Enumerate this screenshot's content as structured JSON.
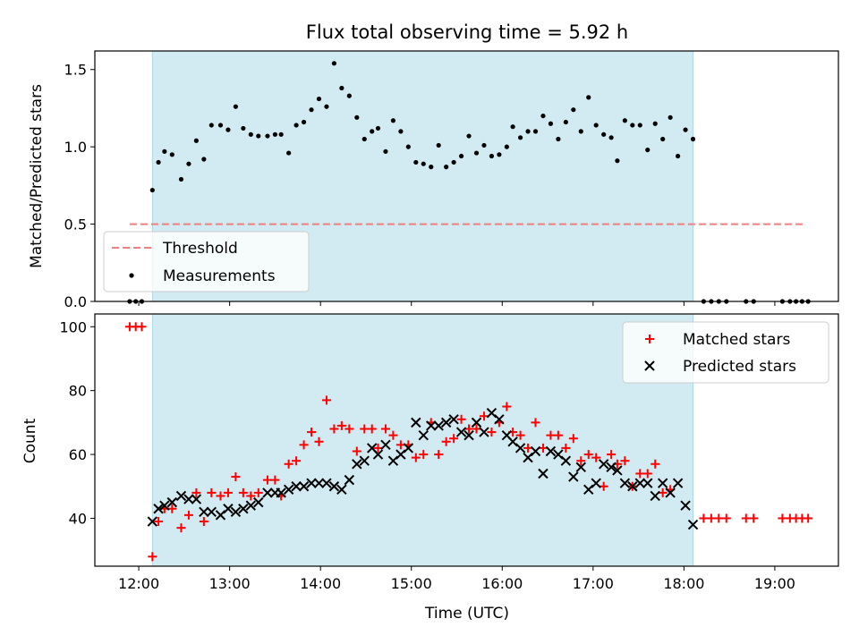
{
  "title": "Flux total observing time = 5.92 h",
  "colors": {
    "shade": "#add8e6",
    "threshold": "#f08080",
    "measurement": "#000000",
    "matched": "#ff0000",
    "predicted": "#000000"
  },
  "chart_data": [
    {
      "type": "scatter",
      "ylabel": "Matched/Predicted stars",
      "xlim": [
        "11:31",
        "19:42"
      ],
      "ylim": [
        0,
        1.62
      ],
      "yticks": [
        0.0,
        0.5,
        1.0,
        1.5
      ],
      "ytick_labels": [
        "0.0",
        "0.5",
        "1.0",
        "1.5"
      ],
      "shaded_span": [
        "12:09",
        "18:06"
      ],
      "threshold": {
        "label": "Threshold",
        "value": 0.5,
        "x_range": [
          "11:54",
          "19:20"
        ]
      },
      "legend": {
        "placement": "lower-left",
        "entries": [
          "Threshold",
          "Measurements"
        ]
      },
      "series": [
        {
          "name": "Measurements",
          "points": [
            [
              "11:54",
              0
            ],
            [
              "11:58",
              0
            ],
            [
              "12:02",
              0
            ],
            [
              "12:09",
              0.72
            ],
            [
              "12:13",
              0.9
            ],
            [
              "12:17",
              0.97
            ],
            [
              "12:22",
              0.95
            ],
            [
              "12:28",
              0.79
            ],
            [
              "12:33",
              0.89
            ],
            [
              "12:38",
              1.04
            ],
            [
              "12:43",
              0.92
            ],
            [
              "12:48",
              1.14
            ],
            [
              "12:54",
              1.14
            ],
            [
              "12:59",
              1.11
            ],
            [
              "13:04",
              1.26
            ],
            [
              "13:09",
              1.12
            ],
            [
              "13:14",
              1.08
            ],
            [
              "13:19",
              1.07
            ],
            [
              "13:25",
              1.07
            ],
            [
              "13:30",
              1.08
            ],
            [
              "13:34",
              1.08
            ],
            [
              "13:39",
              0.96
            ],
            [
              "13:44",
              1.14
            ],
            [
              "13:49",
              1.16
            ],
            [
              "13:54",
              1.24
            ],
            [
              "13:59",
              1.31
            ],
            [
              "14:04",
              1.26
            ],
            [
              "14:09",
              1.54
            ],
            [
              "14:14",
              1.38
            ],
            [
              "14:19",
              1.33
            ],
            [
              "14:24",
              1.19
            ],
            [
              "14:29",
              1.05
            ],
            [
              "14:34",
              1.1
            ],
            [
              "14:38",
              1.12
            ],
            [
              "14:43",
              0.97
            ],
            [
              "14:48",
              1.17
            ],
            [
              "14:53",
              1.1
            ],
            [
              "14:58",
              1.0
            ],
            [
              "15:03",
              0.9
            ],
            [
              "15:08",
              0.89
            ],
            [
              "15:13",
              0.87
            ],
            [
              "15:18",
              1.01
            ],
            [
              "15:23",
              0.87
            ],
            [
              "15:28",
              0.9
            ],
            [
              "15:33",
              0.94
            ],
            [
              "15:38",
              1.07
            ],
            [
              "15:43",
              0.96
            ],
            [
              "15:48",
              1.01
            ],
            [
              "15:53",
              0.94
            ],
            [
              "15:58",
              0.95
            ],
            [
              "16:03",
              1.0
            ],
            [
              "16:07",
              1.13
            ],
            [
              "16:12",
              1.06
            ],
            [
              "16:17",
              1.1
            ],
            [
              "16:22",
              1.1
            ],
            [
              "16:27",
              1.2
            ],
            [
              "16:32",
              1.15
            ],
            [
              "16:37",
              1.05
            ],
            [
              "16:42",
              1.16
            ],
            [
              "16:47",
              1.24
            ],
            [
              "16:52",
              1.1
            ],
            [
              "16:57",
              1.32
            ],
            [
              "17:02",
              1.14
            ],
            [
              "17:07",
              1.08
            ],
            [
              "17:12",
              1.06
            ],
            [
              "17:16",
              0.91
            ],
            [
              "17:21",
              1.17
            ],
            [
              "17:26",
              1.14
            ],
            [
              "17:31",
              1.14
            ],
            [
              "17:36",
              0.98
            ],
            [
              "17:41",
              1.15
            ],
            [
              "17:46",
              1.05
            ],
            [
              "17:51",
              1.19
            ],
            [
              "17:56",
              0.94
            ],
            [
              "18:01",
              1.11
            ],
            [
              "18:06",
              1.05
            ],
            [
              "18:13",
              0
            ],
            [
              "18:18",
              0
            ],
            [
              "18:23",
              0
            ],
            [
              "18:28",
              0
            ],
            [
              "18:41",
              0
            ],
            [
              "18:46",
              0
            ],
            [
              "19:05",
              0
            ],
            [
              "19:10",
              0
            ],
            [
              "19:14",
              0
            ],
            [
              "19:18",
              0
            ],
            [
              "19:22",
              0
            ]
          ]
        }
      ]
    },
    {
      "type": "scatter",
      "xlabel": "Time (UTC)",
      "ylabel": "Count",
      "xlim": [
        "11:31",
        "19:42"
      ],
      "ylim": [
        25,
        104
      ],
      "yticks": [
        40,
        60,
        80,
        100
      ],
      "xticks": [
        "12:00",
        "13:00",
        "14:00",
        "15:00",
        "16:00",
        "17:00",
        "18:00",
        "19:00"
      ],
      "shaded_span": [
        "12:09",
        "18:06"
      ],
      "legend": {
        "placement": "upper-right",
        "entries": [
          "Matched stars",
          "Predicted stars"
        ]
      },
      "series": [
        {
          "name": "Matched stars",
          "points": [
            [
              "11:54",
              100
            ],
            [
              "11:58",
              100
            ],
            [
              "12:02",
              100
            ],
            [
              "12:09",
              28
            ],
            [
              "12:13",
              39
            ],
            [
              "12:17",
              43
            ],
            [
              "12:22",
              43
            ],
            [
              "12:28",
              37
            ],
            [
              "12:33",
              41
            ],
            [
              "12:38",
              48
            ],
            [
              "12:43",
              39
            ],
            [
              "12:48",
              48
            ],
            [
              "12:54",
              47
            ],
            [
              "12:59",
              48
            ],
            [
              "13:04",
              53
            ],
            [
              "13:09",
              48
            ],
            [
              "13:14",
              47
            ],
            [
              "13:19",
              48
            ],
            [
              "13:25",
              52
            ],
            [
              "13:30",
              52
            ],
            [
              "13:34",
              47
            ],
            [
              "13:39",
              57
            ],
            [
              "13:44",
              58
            ],
            [
              "13:49",
              63
            ],
            [
              "13:54",
              67
            ],
            [
              "13:59",
              64
            ],
            [
              "14:04",
              77
            ],
            [
              "14:09",
              68
            ],
            [
              "14:14",
              69
            ],
            [
              "14:19",
              68
            ],
            [
              "14:24",
              61
            ],
            [
              "14:29",
              68
            ],
            [
              "14:34",
              68
            ],
            [
              "14:38",
              62
            ],
            [
              "14:43",
              68
            ],
            [
              "14:48",
              66
            ],
            [
              "14:53",
              63
            ],
            [
              "14:58",
              63
            ],
            [
              "15:03",
              59
            ],
            [
              "15:08",
              60
            ],
            [
              "15:13",
              70
            ],
            [
              "15:18",
              60
            ],
            [
              "15:23",
              64
            ],
            [
              "15:28",
              65
            ],
            [
              "15:33",
              71
            ],
            [
              "15:38",
              68
            ],
            [
              "15:43",
              68
            ],
            [
              "15:48",
              72
            ],
            [
              "15:53",
              67
            ],
            [
              "15:58",
              70
            ],
            [
              "16:03",
              75
            ],
            [
              "16:07",
              67
            ],
            [
              "16:12",
              66
            ],
            [
              "16:17",
              62
            ],
            [
              "16:22",
              70
            ],
            [
              "16:27",
              62
            ],
            [
              "16:32",
              66
            ],
            [
              "16:37",
              66
            ],
            [
              "16:42",
              62
            ],
            [
              "16:47",
              65
            ],
            [
              "16:52",
              58
            ],
            [
              "16:57",
              60
            ],
            [
              "17:02",
              59
            ],
            [
              "17:07",
              50
            ],
            [
              "17:12",
              60
            ],
            [
              "17:16",
              57
            ],
            [
              "17:21",
              58
            ],
            [
              "17:26",
              50
            ],
            [
              "17:31",
              54
            ],
            [
              "17:36",
              54
            ],
            [
              "17:41",
              57
            ],
            [
              "17:46",
              48
            ],
            [
              "17:51",
              49
            ],
            [
              "18:13",
              40
            ],
            [
              "18:18",
              40
            ],
            [
              "18:23",
              40
            ],
            [
              "18:28",
              40
            ],
            [
              "18:41",
              40
            ],
            [
              "18:46",
              40
            ],
            [
              "19:05",
              40
            ],
            [
              "19:10",
              40
            ],
            [
              "19:14",
              40
            ],
            [
              "19:18",
              40
            ],
            [
              "19:22",
              40
            ]
          ]
        },
        {
          "name": "Predicted stars",
          "points": [
            [
              "12:09",
              39
            ],
            [
              "12:13",
              43
            ],
            [
              "12:17",
              44
            ],
            [
              "12:22",
              45
            ],
            [
              "12:28",
              47
            ],
            [
              "12:33",
              46
            ],
            [
              "12:38",
              46
            ],
            [
              "12:43",
              42
            ],
            [
              "12:48",
              42
            ],
            [
              "12:54",
              41
            ],
            [
              "12:59",
              43
            ],
            [
              "13:04",
              42
            ],
            [
              "13:09",
              43
            ],
            [
              "13:14",
              44
            ],
            [
              "13:19",
              45
            ],
            [
              "13:25",
              48
            ],
            [
              "13:30",
              48
            ],
            [
              "13:34",
              48
            ],
            [
              "13:39",
              49
            ],
            [
              "13:44",
              50
            ],
            [
              "13:49",
              50
            ],
            [
              "13:54",
              51
            ],
            [
              "13:59",
              51
            ],
            [
              "14:04",
              51
            ],
            [
              "14:09",
              50
            ],
            [
              "14:14",
              49
            ],
            [
              "14:19",
              52
            ],
            [
              "14:24",
              57
            ],
            [
              "14:29",
              58
            ],
            [
              "14:34",
              62
            ],
            [
              "14:38",
              60
            ],
            [
              "14:43",
              63
            ],
            [
              "14:48",
              58
            ],
            [
              "14:53",
              60
            ],
            [
              "14:58",
              62
            ],
            [
              "15:03",
              70
            ],
            [
              "15:08",
              66
            ],
            [
              "15:13",
              69
            ],
            [
              "15:18",
              69
            ],
            [
              "15:23",
              70
            ],
            [
              "15:28",
              71
            ],
            [
              "15:33",
              67
            ],
            [
              "15:38",
              66
            ],
            [
              "15:43",
              70
            ],
            [
              "15:48",
              67
            ],
            [
              "15:53",
              73
            ],
            [
              "15:58",
              71
            ],
            [
              "16:03",
              66
            ],
            [
              "16:07",
              64
            ],
            [
              "16:12",
              62
            ],
            [
              "16:17",
              59
            ],
            [
              "16:22",
              61
            ],
            [
              "16:27",
              54
            ],
            [
              "16:32",
              61
            ],
            [
              "16:37",
              60
            ],
            [
              "16:42",
              58
            ],
            [
              "16:47",
              53
            ],
            [
              "16:52",
              56
            ],
            [
              "16:57",
              49
            ],
            [
              "17:02",
              51
            ],
            [
              "17:07",
              57
            ],
            [
              "17:12",
              56
            ],
            [
              "17:16",
              55
            ],
            [
              "17:21",
              51
            ],
            [
              "17:26",
              50
            ],
            [
              "17:31",
              51
            ],
            [
              "17:36",
              51
            ],
            [
              "17:41",
              47
            ],
            [
              "17:46",
              51
            ],
            [
              "17:51",
              48
            ],
            [
              "17:56",
              51
            ],
            [
              "18:01",
              44
            ],
            [
              "18:06",
              38
            ]
          ]
        }
      ]
    }
  ]
}
